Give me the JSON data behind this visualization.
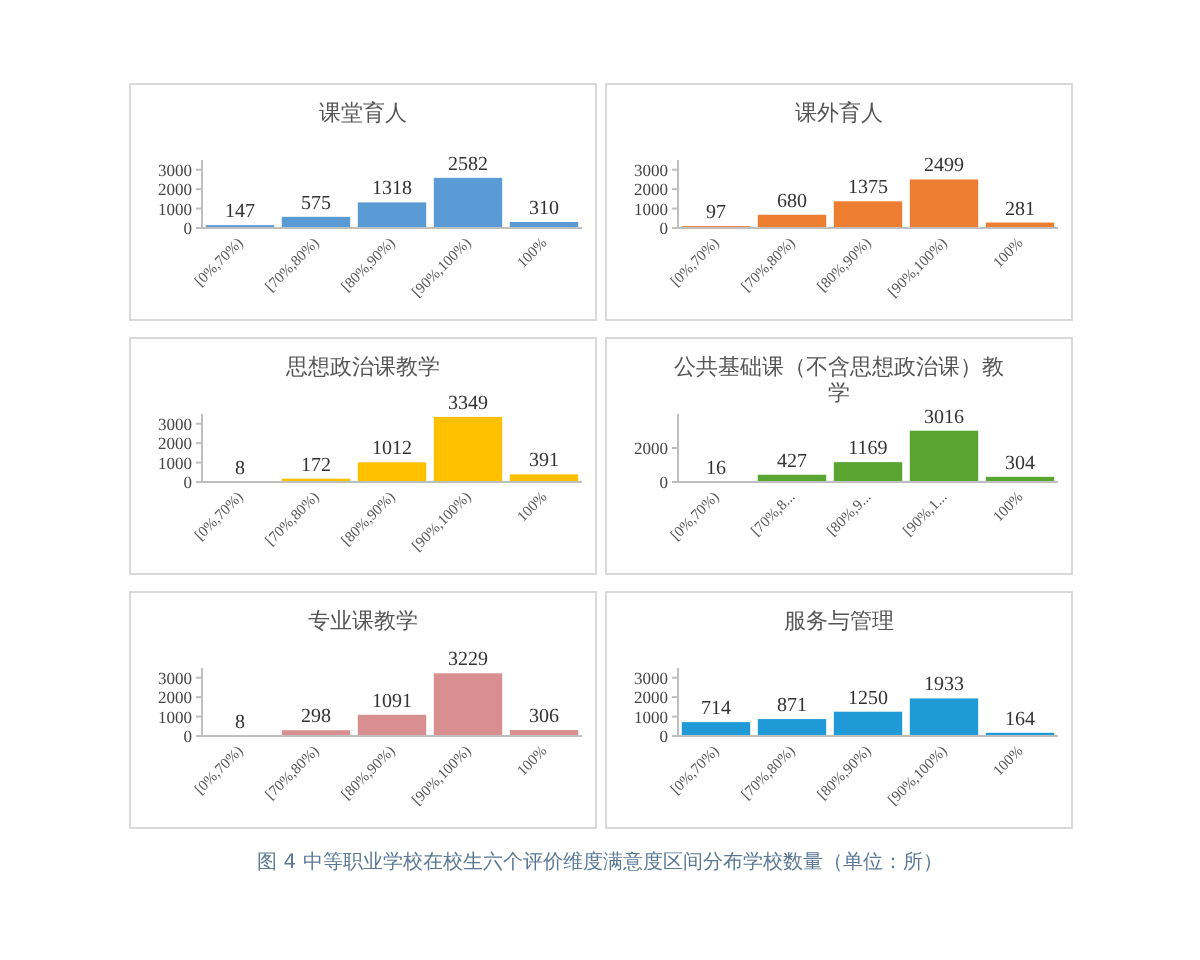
{
  "chart_data": [
    {
      "type": "bar",
      "title": "课堂育人",
      "categories": [
        "[0%,70%)",
        "[70%,80%)",
        "[80%,90%)",
        "[90%,100%)",
        "100%"
      ],
      "values": [
        147,
        575,
        1318,
        2582,
        310
      ],
      "color": "#5b9bd5",
      "ylim": [
        0,
        3500
      ],
      "yticks": [
        0,
        1000,
        2000,
        3000
      ],
      "data_labels": true,
      "grid": false
    },
    {
      "type": "bar",
      "title": "课外育人",
      "categories": [
        "[0%,70%)",
        "[70%,80%)",
        "[80%,90%)",
        "[90%,100%)",
        "100%"
      ],
      "values": [
        97,
        680,
        1375,
        2499,
        281
      ],
      "color": "#ed7d31",
      "ylim": [
        0,
        3500
      ],
      "yticks": [
        0,
        1000,
        2000,
        3000
      ],
      "data_labels": true,
      "grid": false
    },
    {
      "type": "bar",
      "title": "思想政治课教学",
      "categories": [
        "[0%,70%)",
        "[70%,80%)",
        "[80%,90%)",
        "[90%,100%)",
        "100%"
      ],
      "values": [
        8,
        172,
        1012,
        3349,
        391
      ],
      "color": "#ffc000",
      "ylim": [
        0,
        3500
      ],
      "yticks": [
        0,
        1000,
        2000,
        3000
      ],
      "data_labels": true,
      "grid": false
    },
    {
      "type": "bar",
      "title": "公共基础课（不含思想政治课）教学",
      "categories": [
        "[0%,70%)",
        "[70%,8...",
        "[80%,9...",
        "[90%,1...",
        "100%"
      ],
      "values": [
        16,
        427,
        1169,
        3016,
        304
      ],
      "color": "#5aa532",
      "ylim": [
        0,
        4000
      ],
      "yticks": [
        0,
        2000
      ],
      "data_labels": true,
      "grid": false
    },
    {
      "type": "bar",
      "title": "专业课教学",
      "categories": [
        "[0%,70%)",
        "[70%,80%)",
        "[80%,90%)",
        "[90%,100%)",
        "100%"
      ],
      "values": [
        8,
        298,
        1091,
        3229,
        306
      ],
      "color": "#d98f8f",
      "ylim": [
        0,
        3500
      ],
      "yticks": [
        0,
        1000,
        2000,
        3000
      ],
      "data_labels": true,
      "grid": false
    },
    {
      "type": "bar",
      "title": "服务与管理",
      "categories": [
        "[0%,70%)",
        "[70%,80%)",
        "[80%,90%)",
        "[90%,100%)",
        "100%"
      ],
      "values": [
        714,
        871,
        1250,
        1933,
        164
      ],
      "color": "#1f9ad6",
      "ylim": [
        0,
        3500
      ],
      "yticks": [
        0,
        1000,
        2000,
        3000
      ],
      "data_labels": true,
      "grid": false,
      "annotations": [
        "图 4 中等职业学校在校生六个评价维度满意度区间分布学校数量（单位：所）"
      ]
    }
  ]
}
